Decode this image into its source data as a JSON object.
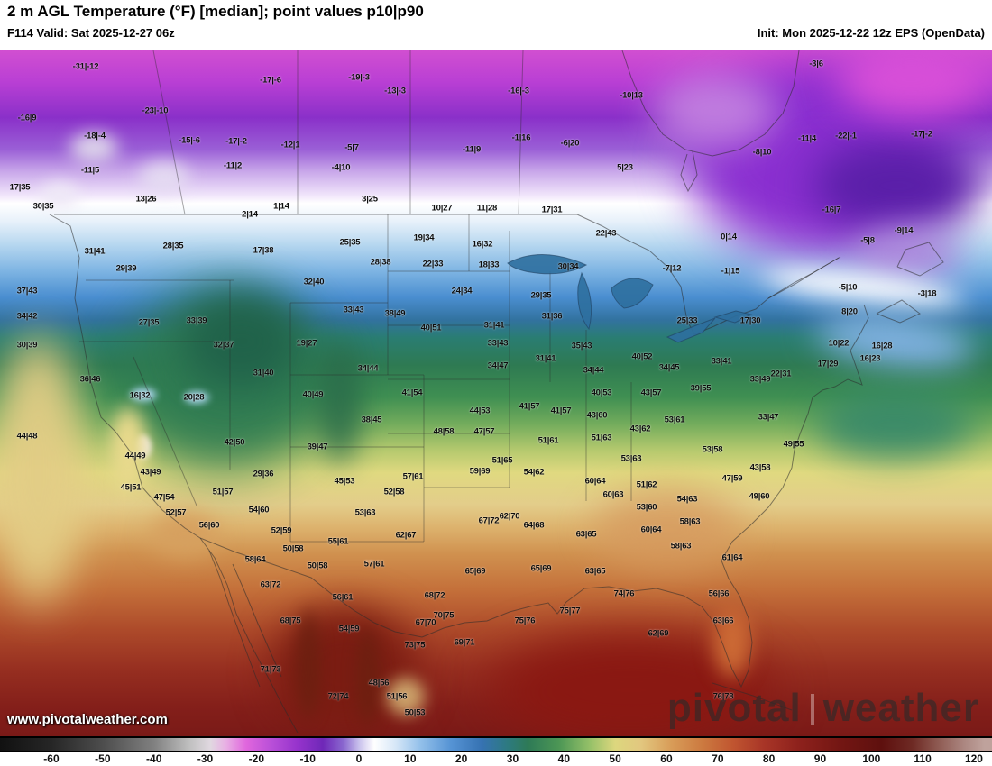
{
  "header": {
    "title": "2 m AGL Temperature (°F) [median]; point values p10|p90",
    "valid": "F114 Valid: Sat 2025-12-27 06z",
    "init": "Init: Mon 2025-12-22 12z EPS (OpenData)"
  },
  "map": {
    "watermark_left_word": "pivotal",
    "watermark_right_word": "weather",
    "url_watermark": "www.pivotalweather.com",
    "stations": [
      [
        95,
        73,
        "-31|-12"
      ],
      [
        300,
        88,
        "-17|-6"
      ],
      [
        398,
        85,
        "-19|-3"
      ],
      [
        438,
        100,
        "-13|-3"
      ],
      [
        575,
        100,
        "-16|-3"
      ],
      [
        700,
        105,
        "-10|13"
      ],
      [
        905,
        70,
        "-3|6"
      ],
      [
        30,
        130,
        "-16|9"
      ],
      [
        172,
        122,
        "-23|-10"
      ],
      [
        105,
        150,
        "-18|-4"
      ],
      [
        210,
        155,
        "-15|-6"
      ],
      [
        262,
        156,
        "-17|-2"
      ],
      [
        322,
        160,
        "-12|1"
      ],
      [
        390,
        163,
        "-5|7"
      ],
      [
        523,
        165,
        "-11|9"
      ],
      [
        578,
        152,
        "-1|16"
      ],
      [
        632,
        158,
        "-6|20"
      ],
      [
        845,
        168,
        "-8|10"
      ],
      [
        895,
        153,
        "-11|4"
      ],
      [
        938,
        150,
        "-22|-1"
      ],
      [
        1022,
        148,
        "-17|-2"
      ],
      [
        100,
        188,
        "-11|5"
      ],
      [
        258,
        183,
        "-11|2"
      ],
      [
        378,
        185,
        "-4|10"
      ],
      [
        693,
        185,
        "5|23"
      ],
      [
        22,
        207,
        "17|35"
      ],
      [
        48,
        228,
        "30|35"
      ],
      [
        162,
        220,
        "13|26"
      ],
      [
        410,
        220,
        "3|25"
      ],
      [
        277,
        237,
        "2|14"
      ],
      [
        312,
        228,
        "1|14"
      ],
      [
        490,
        230,
        "10|27"
      ],
      [
        540,
        230,
        "11|28"
      ],
      [
        612,
        232,
        "17|31"
      ],
      [
        922,
        232,
        "-16|7"
      ],
      [
        808,
        262,
        "0|14"
      ],
      [
        962,
        266,
        "-5|8"
      ],
      [
        1002,
        255,
        "-9|14"
      ],
      [
        105,
        278,
        "31|41"
      ],
      [
        192,
        272,
        "28|35"
      ],
      [
        292,
        277,
        "17|38"
      ],
      [
        388,
        268,
        "25|35"
      ],
      [
        470,
        263,
        "19|34"
      ],
      [
        535,
        270,
        "16|32"
      ],
      [
        672,
        258,
        "22|43"
      ],
      [
        140,
        297,
        "29|39"
      ],
      [
        422,
        290,
        "28|38"
      ],
      [
        480,
        292,
        "22|33"
      ],
      [
        542,
        293,
        "18|33"
      ],
      [
        630,
        295,
        "30|34"
      ],
      [
        745,
        297,
        "-7|12"
      ],
      [
        810,
        300,
        "-1|15"
      ],
      [
        30,
        322,
        "37|43"
      ],
      [
        348,
        312,
        "32|40"
      ],
      [
        512,
        322,
        "24|34"
      ],
      [
        600,
        327,
        "29|35"
      ],
      [
        940,
        318,
        "-5|10"
      ],
      [
        1028,
        325,
        "-3|18"
      ],
      [
        30,
        350,
        "34|42"
      ],
      [
        165,
        357,
        "27|35"
      ],
      [
        218,
        355,
        "33|39"
      ],
      [
        392,
        343,
        "33|43"
      ],
      [
        438,
        347,
        "38|49"
      ],
      [
        612,
        350,
        "31|36"
      ],
      [
        762,
        355,
        "25|33"
      ],
      [
        832,
        355,
        "17|30"
      ],
      [
        942,
        345,
        "8|20"
      ],
      [
        30,
        382,
        "30|39"
      ],
      [
        248,
        382,
        "32|37"
      ],
      [
        340,
        380,
        "19|27"
      ],
      [
        478,
        363,
        "40|51"
      ],
      [
        548,
        360,
        "31|41"
      ],
      [
        552,
        380,
        "33|43"
      ],
      [
        645,
        383,
        "35|43"
      ],
      [
        800,
        400,
        "33|41"
      ],
      [
        930,
        380,
        "10|22"
      ],
      [
        978,
        383,
        "16|28"
      ],
      [
        965,
        397,
        "16|23"
      ],
      [
        918,
        403,
        "17|29"
      ],
      [
        866,
        414,
        "22|31"
      ],
      [
        100,
        420,
        "36|46"
      ],
      [
        292,
        413,
        "31|40"
      ],
      [
        408,
        408,
        "34|44"
      ],
      [
        552,
        405,
        "34|47"
      ],
      [
        605,
        397,
        "31|41"
      ],
      [
        658,
        410,
        "34|44"
      ],
      [
        712,
        395,
        "40|52"
      ],
      [
        742,
        407,
        "34|45"
      ],
      [
        843,
        420,
        "33|49"
      ],
      [
        155,
        438,
        "16|32"
      ],
      [
        215,
        440,
        "20|28"
      ],
      [
        347,
        437,
        "40|49"
      ],
      [
        457,
        435,
        "41|54"
      ],
      [
        667,
        435,
        "40|53"
      ],
      [
        722,
        435,
        "43|57"
      ],
      [
        777,
        430,
        "39|55"
      ],
      [
        30,
        483,
        "44|48"
      ],
      [
        260,
        490,
        "42|50"
      ],
      [
        352,
        495,
        "39|47"
      ],
      [
        412,
        465,
        "38|45"
      ],
      [
        532,
        455,
        "44|53"
      ],
      [
        492,
        478,
        "48|58"
      ],
      [
        537,
        478,
        "47|57"
      ],
      [
        587,
        450,
        "41|57"
      ],
      [
        622,
        455,
        "41|57"
      ],
      [
        662,
        460,
        "43|60"
      ],
      [
        608,
        488,
        "51|61"
      ],
      [
        667,
        485,
        "51|63"
      ],
      [
        710,
        475,
        "43|62"
      ],
      [
        748,
        465,
        "53|61"
      ],
      [
        790,
        498,
        "53|58"
      ],
      [
        852,
        462,
        "33|47"
      ],
      [
        880,
        492,
        "49|55"
      ],
      [
        843,
        518,
        "43|58"
      ],
      [
        150,
        505,
        "44|49"
      ],
      [
        167,
        523,
        "43|49"
      ],
      [
        145,
        540,
        "45|51"
      ],
      [
        182,
        551,
        "47|54"
      ],
      [
        247,
        545,
        "51|57"
      ],
      [
        292,
        525,
        "29|36"
      ],
      [
        382,
        533,
        "45|53"
      ],
      [
        437,
        545,
        "52|58"
      ],
      [
        458,
        528,
        "57|61"
      ],
      [
        557,
        510,
        "51|65"
      ],
      [
        532,
        522,
        "59|69"
      ],
      [
        592,
        523,
        "54|62"
      ],
      [
        700,
        508,
        "53|63"
      ],
      [
        660,
        533,
        "60|64"
      ],
      [
        680,
        548,
        "60|63"
      ],
      [
        717,
        537,
        "51|62"
      ],
      [
        812,
        530,
        "47|59"
      ],
      [
        287,
        565,
        "54|60"
      ],
      [
        195,
        568,
        "52|57"
      ],
      [
        232,
        582,
        "56|60"
      ],
      [
        312,
        588,
        "52|59"
      ],
      [
        405,
        568,
        "53|63"
      ],
      [
        542,
        577,
        "67|72"
      ],
      [
        565,
        572,
        "62|70"
      ],
      [
        717,
        562,
        "53|60"
      ],
      [
        762,
        553,
        "54|63"
      ],
      [
        842,
        550,
        "49|60"
      ],
      [
        375,
        600,
        "55|61"
      ],
      [
        450,
        593,
        "62|67"
      ],
      [
        592,
        582,
        "64|68"
      ],
      [
        650,
        592,
        "63|65"
      ],
      [
        722,
        587,
        "60|64"
      ],
      [
        765,
        578,
        "58|63"
      ],
      [
        325,
        608,
        "50|58"
      ],
      [
        283,
        620,
        "58|64"
      ],
      [
        352,
        627,
        "50|58"
      ],
      [
        415,
        625,
        "57|61"
      ],
      [
        527,
        633,
        "65|69"
      ],
      [
        600,
        630,
        "65|69"
      ],
      [
        660,
        633,
        "63|65"
      ],
      [
        755,
        605,
        "58|63"
      ],
      [
        812,
        618,
        "61|64"
      ],
      [
        300,
        648,
        "63|72"
      ],
      [
        380,
        662,
        "56|61"
      ],
      [
        482,
        660,
        "68|72"
      ],
      [
        692,
        658,
        "74|76"
      ],
      [
        797,
        658,
        "56|66"
      ],
      [
        322,
        688,
        "68|75"
      ],
      [
        387,
        697,
        "54|59"
      ],
      [
        472,
        690,
        "67|70"
      ],
      [
        492,
        682,
        "70|75"
      ],
      [
        582,
        688,
        "75|76"
      ],
      [
        632,
        677,
        "75|77"
      ],
      [
        802,
        688,
        "63|66"
      ],
      [
        730,
        702,
        "62|69"
      ],
      [
        515,
        712,
        "69|71"
      ],
      [
        460,
        715,
        "73|75"
      ],
      [
        300,
        742,
        "71|73"
      ],
      [
        375,
        772,
        "72|74"
      ],
      [
        420,
        757,
        "48|56"
      ],
      [
        440,
        772,
        "51|56"
      ],
      [
        460,
        790,
        "50|53"
      ],
      [
        802,
        772,
        "76|78"
      ]
    ]
  },
  "colorbar": {
    "ticks": [
      -60,
      -50,
      -40,
      -30,
      -20,
      -10,
      0,
      10,
      20,
      30,
      40,
      50,
      60,
      70,
      80,
      90,
      100,
      110,
      120
    ],
    "stops": [
      [
        -70,
        "#111111"
      ],
      [
        -60,
        "#262626"
      ],
      [
        -50,
        "#4d4d4d"
      ],
      [
        -40,
        "#808080"
      ],
      [
        -33,
        "#c0c0c0"
      ],
      [
        -29,
        "#e0d8e0"
      ],
      [
        -26,
        "#e8b0e4"
      ],
      [
        -22,
        "#e066dd"
      ],
      [
        -17,
        "#b84fd8"
      ],
      [
        -12,
        "#9633cc"
      ],
      [
        -7,
        "#6f28b8"
      ],
      [
        -3,
        "#8a68cf"
      ],
      [
        0,
        "#c8c0ec"
      ],
      [
        3,
        "#ffffff"
      ],
      [
        7,
        "#d8e8f8"
      ],
      [
        12,
        "#93c0ea"
      ],
      [
        18,
        "#5593d4"
      ],
      [
        24,
        "#3672b2"
      ],
      [
        29,
        "#2d7a80"
      ],
      [
        33,
        "#2e7a56"
      ],
      [
        39,
        "#4c9655"
      ],
      [
        45,
        "#94c068"
      ],
      [
        50,
        "#ddd77e"
      ],
      [
        55,
        "#e2c77f"
      ],
      [
        61,
        "#d89c58"
      ],
      [
        67,
        "#cc7a40"
      ],
      [
        73,
        "#c05530"
      ],
      [
        79,
        "#a83527"
      ],
      [
        86,
        "#8d211c"
      ],
      [
        94,
        "#731613"
      ],
      [
        102,
        "#5e100e"
      ],
      [
        108,
        "#6e2a24"
      ],
      [
        113,
        "#8e5a52"
      ],
      [
        118,
        "#ab8680"
      ],
      [
        122,
        "#bfa29c"
      ]
    ]
  }
}
